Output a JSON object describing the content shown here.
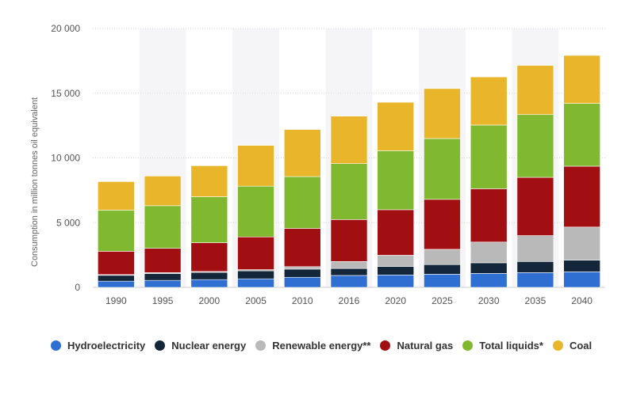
{
  "chart_data": {
    "type": "bar",
    "stacked": true,
    "categories": [
      "1990",
      "1995",
      "2000",
      "2005",
      "2010",
      "2016",
      "2020",
      "2025",
      "2030",
      "2035",
      "2040"
    ],
    "series": [
      {
        "name": "Hydroelectricity",
        "color": "#2f6fd1",
        "values": [
          480,
          540,
          600,
          660,
          780,
          920,
          960,
          1020,
          1080,
          1140,
          1200
        ]
      },
      {
        "name": "Nuclear energy",
        "color": "#13263a",
        "values": [
          450,
          530,
          560,
          620,
          630,
          540,
          660,
          740,
          820,
          860,
          900
        ]
      },
      {
        "name": "Renewable energy**",
        "color": "#b9b9b9",
        "values": [
          60,
          70,
          70,
          90,
          190,
          540,
          860,
          1180,
          1600,
          2000,
          2560
        ]
      },
      {
        "name": "Natural gas",
        "color": "#a20f12",
        "values": [
          1800,
          1880,
          2220,
          2530,
          2960,
          3240,
          3520,
          3860,
          4120,
          4500,
          4700
        ]
      },
      {
        "name": "Total liquids*",
        "color": "#80b92f",
        "values": [
          3180,
          3290,
          3550,
          3920,
          4000,
          4320,
          4560,
          4700,
          4920,
          4850,
          4850
        ]
      },
      {
        "name": "Coal",
        "color": "#e9b62b",
        "values": [
          2200,
          2290,
          2400,
          3150,
          3640,
          3670,
          3740,
          3860,
          3720,
          3800,
          3710
        ]
      }
    ],
    "ylabel": "Consumption in million tonnes oil equivalent",
    "ylim": [
      0,
      20000
    ],
    "yticks": [
      0,
      5000,
      10000,
      15000,
      20000
    ],
    "ytick_labels": [
      "0",
      "5 000",
      "10 000",
      "15 000",
      "20 000"
    ],
    "grid": true,
    "legend": "bottom"
  }
}
